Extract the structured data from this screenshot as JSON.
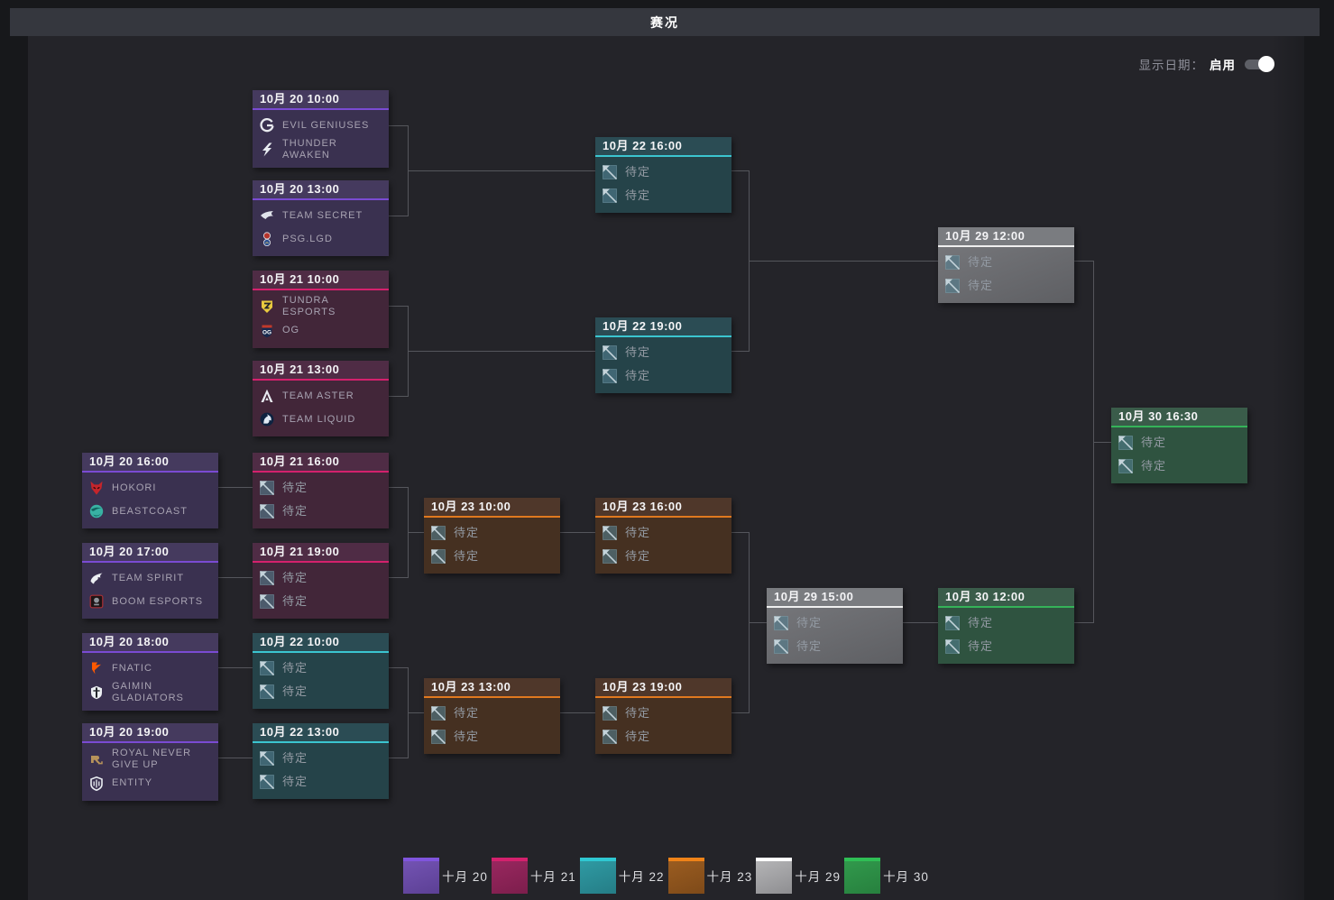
{
  "title_bar": {
    "title": "赛况"
  },
  "controls": {
    "show_date_label": "显示日期：",
    "toggle_label": "启用",
    "toggle_enabled": true
  },
  "tbd_label": "待定",
  "themes": {
    "oct20": {
      "header": "#453a5e",
      "body": "#3a3150",
      "accent": "#7a4bd3",
      "legend_top": "#8055dd",
      "legend_body_light": "#7353b3",
      "legend_body_dark": "#5c4094"
    },
    "oct21": {
      "header": "#4f2c45",
      "body": "#422639",
      "accent": "#d4216d",
      "legend_top": "#d4216d",
      "legend_body_light": "#99275f",
      "legend_body_dark": "#7c1e4c"
    },
    "oct22": {
      "header": "#2b4c54",
      "body": "#254349",
      "accent": "#3bc5d0",
      "legend_top": "#2fc8d2",
      "legend_body_light": "#2f9aa3",
      "legend_body_dark": "#257d86"
    },
    "oct23": {
      "header": "#4f372a",
      "body": "#453021",
      "accent": "#e0791f",
      "legend_top": "#ef8318",
      "legend_body_light": "#9a5c20",
      "legend_body_dark": "#7e4a19"
    },
    "oct29": {
      "header": "#7a7c80",
      "body": "#6b6d71",
      "accent": "#efefef",
      "legend_top": "#ffffff",
      "legend_body_light": "#b4b4b6",
      "legend_body_dark": "#8e8e91"
    },
    "oct30": {
      "header": "#3a5c4a",
      "body": "#2f5340",
      "accent": "#35b359",
      "legend_top": "#2fbf55",
      "legend_body_light": "#31994c",
      "legend_body_dark": "#27803e"
    }
  },
  "matches": [
    {
      "id": "m1",
      "datetime": "10月 20 10:00",
      "theme": "oct20",
      "teams": [
        {
          "icon": "eg-icon",
          "name": "EVIL GENIUSES"
        },
        {
          "icon": "thunder-awaken-icon",
          "name": "THUNDER AWAKEN"
        }
      ]
    },
    {
      "id": "m2",
      "datetime": "10月 20 13:00",
      "theme": "oct20",
      "teams": [
        {
          "icon": "team-secret-icon",
          "name": "TEAM SECRET"
        },
        {
          "icon": "psg-lgd-icon",
          "name": "PSG.LGD"
        }
      ]
    },
    {
      "id": "m3",
      "datetime": "10月 21 10:00",
      "theme": "oct21",
      "teams": [
        {
          "icon": "tundra-esports-icon",
          "name": "TUNDRA ESPORTS"
        },
        {
          "icon": "og-icon",
          "name": "OG"
        }
      ]
    },
    {
      "id": "m4",
      "datetime": "10月 21 13:00",
      "theme": "oct21",
      "teams": [
        {
          "icon": "team-aster-icon",
          "name": "TEAM ASTER"
        },
        {
          "icon": "team-liquid-icon",
          "name": "TEAM LIQUID"
        }
      ]
    },
    {
      "id": "m5",
      "datetime": "10月 22 16:00",
      "theme": "oct22",
      "teams": [
        {
          "icon": "tbd-icon",
          "name": "待定",
          "tbd": true
        },
        {
          "icon": "tbd-icon",
          "name": "待定",
          "tbd": true
        }
      ]
    },
    {
      "id": "m6",
      "datetime": "10月 22 19:00",
      "theme": "oct22",
      "teams": [
        {
          "icon": "tbd-icon",
          "name": "待定",
          "tbd": true
        },
        {
          "icon": "tbd-icon",
          "name": "待定",
          "tbd": true
        }
      ]
    },
    {
      "id": "m7",
      "datetime": "10月 29 12:00",
      "theme": "oct29",
      "teams": [
        {
          "icon": "tbd-icon",
          "name": "待定",
          "tbd": true
        },
        {
          "icon": "tbd-icon",
          "name": "待定",
          "tbd": true
        }
      ]
    },
    {
      "id": "m8",
      "datetime": "10月 30 16:30",
      "theme": "oct30",
      "teams": [
        {
          "icon": "tbd-icon",
          "name": "待定",
          "tbd": true
        },
        {
          "icon": "tbd-icon",
          "name": "待定",
          "tbd": true
        }
      ]
    },
    {
      "id": "m9",
      "datetime": "10月 20 16:00",
      "theme": "oct20",
      "teams": [
        {
          "icon": "hokori-icon",
          "name": "HOKORI"
        },
        {
          "icon": "beastcoast-icon",
          "name": "BEASTCOAST"
        }
      ]
    },
    {
      "id": "m10",
      "datetime": "10月 20 17:00",
      "theme": "oct20",
      "teams": [
        {
          "icon": "team-spirit-icon",
          "name": "TEAM SPIRIT"
        },
        {
          "icon": "boom-esports-icon",
          "name": "BOOM ESPORTS"
        }
      ]
    },
    {
      "id": "m11",
      "datetime": "10月 20 18:00",
      "theme": "oct20",
      "teams": [
        {
          "icon": "fnatic-icon",
          "name": "FNATIC"
        },
        {
          "icon": "gaimin-gladiators-icon",
          "name": "GAIMIN GLADIATORS"
        }
      ]
    },
    {
      "id": "m12",
      "datetime": "10月 20 19:00",
      "theme": "oct20",
      "teams": [
        {
          "icon": "rng-icon",
          "name": "ROYAL NEVER GIVE UP"
        },
        {
          "icon": "entity-icon",
          "name": "ENTITY"
        }
      ]
    },
    {
      "id": "m13",
      "datetime": "10月 21 16:00",
      "theme": "oct21",
      "teams": [
        {
          "icon": "tbd-icon",
          "name": "待定",
          "tbd": true
        },
        {
          "icon": "tbd-icon",
          "name": "待定",
          "tbd": true
        }
      ]
    },
    {
      "id": "m14",
      "datetime": "10月 21 19:00",
      "theme": "oct21",
      "teams": [
        {
          "icon": "tbd-icon",
          "name": "待定",
          "tbd": true
        },
        {
          "icon": "tbd-icon",
          "name": "待定",
          "tbd": true
        }
      ]
    },
    {
      "id": "m15",
      "datetime": "10月 22 10:00",
      "theme": "oct22",
      "teams": [
        {
          "icon": "tbd-icon",
          "name": "待定",
          "tbd": true
        },
        {
          "icon": "tbd-icon",
          "name": "待定",
          "tbd": true
        }
      ]
    },
    {
      "id": "m16",
      "datetime": "10月 22 13:00",
      "theme": "oct22",
      "teams": [
        {
          "icon": "tbd-icon",
          "name": "待定",
          "tbd": true
        },
        {
          "icon": "tbd-icon",
          "name": "待定",
          "tbd": true
        }
      ]
    },
    {
      "id": "m17",
      "datetime": "10月 23 10:00",
      "theme": "oct23",
      "teams": [
        {
          "icon": "tbd-icon",
          "name": "待定",
          "tbd": true
        },
        {
          "icon": "tbd-icon",
          "name": "待定",
          "tbd": true
        }
      ]
    },
    {
      "id": "m18",
      "datetime": "10月 23 13:00",
      "theme": "oct23",
      "teams": [
        {
          "icon": "tbd-icon",
          "name": "待定",
          "tbd": true
        },
        {
          "icon": "tbd-icon",
          "name": "待定",
          "tbd": true
        }
      ]
    },
    {
      "id": "m19",
      "datetime": "10月 23 16:00",
      "theme": "oct23",
      "teams": [
        {
          "icon": "tbd-icon",
          "name": "待定",
          "tbd": true
        },
        {
          "icon": "tbd-icon",
          "name": "待定",
          "tbd": true
        }
      ]
    },
    {
      "id": "m20",
      "datetime": "10月 23 19:00",
      "theme": "oct23",
      "teams": [
        {
          "icon": "tbd-icon",
          "name": "待定",
          "tbd": true
        },
        {
          "icon": "tbd-icon",
          "name": "待定",
          "tbd": true
        }
      ]
    },
    {
      "id": "m21",
      "datetime": "10月 29 15:00",
      "theme": "oct29",
      "teams": [
        {
          "icon": "tbd-icon",
          "name": "待定",
          "tbd": true
        },
        {
          "icon": "tbd-icon",
          "name": "待定",
          "tbd": true
        }
      ]
    },
    {
      "id": "m22",
      "datetime": "10月 30 12:00",
      "theme": "oct30",
      "teams": [
        {
          "icon": "tbd-icon",
          "name": "待定",
          "tbd": true
        },
        {
          "icon": "tbd-icon",
          "name": "待定",
          "tbd": true
        }
      ]
    }
  ],
  "legend": [
    {
      "label": "十月 20",
      "theme": "oct20"
    },
    {
      "label": "十月 21",
      "theme": "oct21"
    },
    {
      "label": "十月 22",
      "theme": "oct22"
    },
    {
      "label": "十月 23",
      "theme": "oct23"
    },
    {
      "label": "十月 29",
      "theme": "oct29"
    },
    {
      "label": "十月 30",
      "theme": "oct30"
    }
  ]
}
